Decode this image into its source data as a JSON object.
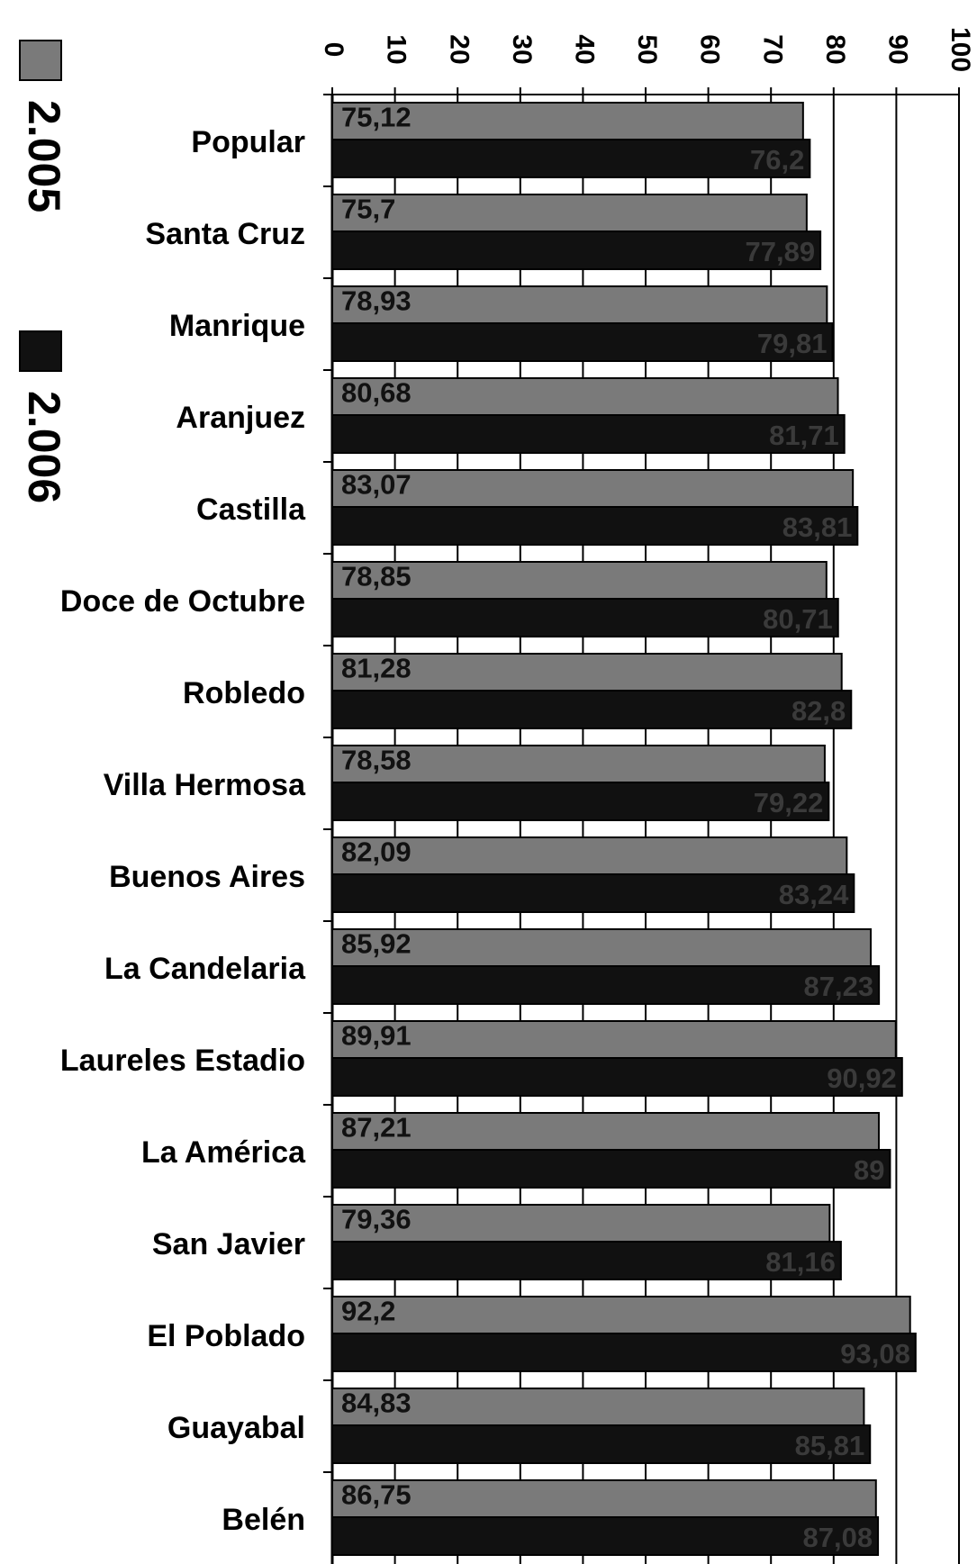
{
  "chart_data": {
    "type": "bar",
    "orientation": "horizontal",
    "categories": [
      "Popular",
      "Santa Cruz",
      "Manrique",
      "Aranjuez",
      "Castilla",
      "Doce de Octubre",
      "Robledo",
      "Villa Hermosa",
      "Buenos Aires",
      "La Candelaria",
      "Laureles Estadio",
      "La América",
      "San Javier",
      "El Poblado",
      "Guayabal",
      "Belén"
    ],
    "series": [
      {
        "name": "2.005",
        "color": "#7a7a7a",
        "values": [
          75.12,
          75.7,
          78.93,
          80.68,
          83.07,
          78.85,
          81.28,
          78.58,
          82.09,
          85.92,
          89.91,
          87.21,
          79.36,
          92.2,
          84.83,
          86.75
        ],
        "value_labels": [
          "75,12",
          "75,7",
          "78,93",
          "80,68",
          "83,07",
          "78,85",
          "81,28",
          "78,58",
          "82,09",
          "85,92",
          "89,91",
          "87,21",
          "79,36",
          "92,2",
          "84,83",
          "86,75"
        ]
      },
      {
        "name": "2.006",
        "color": "#111111",
        "values": [
          76.2,
          77.89,
          79.81,
          81.71,
          83.81,
          80.71,
          82.8,
          79.22,
          83.24,
          87.23,
          90.92,
          89,
          81.16,
          93.08,
          85.81,
          87.08
        ],
        "value_labels": [
          "76,2",
          "77,89",
          "79,81",
          "81,71",
          "83,81",
          "80,71",
          "82,8",
          "79,22",
          "83,24",
          "87,23",
          "90,92",
          "89",
          "81,16",
          "93,08",
          "85,81",
          "87,08"
        ]
      }
    ],
    "xlim": [
      0,
      100
    ],
    "xticks": [
      0,
      10,
      20,
      30,
      40,
      50,
      60,
      70,
      80,
      90,
      100
    ],
    "grid": true
  }
}
